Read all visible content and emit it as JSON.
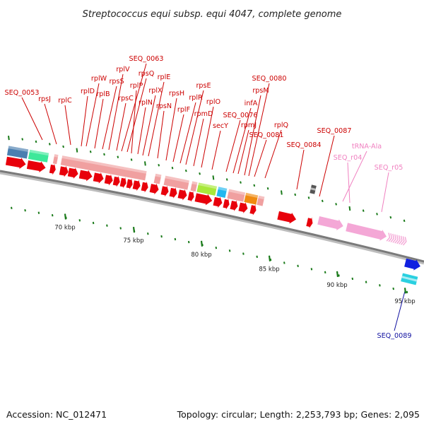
{
  "title": "Streptococcus equi subsp. equi 4047, complete genome",
  "footer": {
    "accession": "Accession: NC_012471",
    "topology": "Topology: circular; Length: 2,253,793 bp; Genes: 2,095"
  },
  "colors": {
    "cds_arrow": "#e8000b",
    "ribosomal_box": "#f0a0a0",
    "trna_pink": "#f4a7d6",
    "label_red": "#cc0000",
    "label_pink": "#f080c0",
    "label_blue": "#1010a0",
    "backbone": "#7a7a7a",
    "tick_green": "#1a7a1a"
  },
  "scale_ticks": [
    {
      "label": "70 kbp"
    },
    {
      "label": "75 kbp"
    },
    {
      "label": "80 kbp"
    },
    {
      "label": "85 kbp"
    },
    {
      "label": "90 kbp"
    },
    {
      "label": "95 kbp"
    }
  ],
  "gene_labels": [
    {
      "text": "SEQ_0053",
      "color": "red"
    },
    {
      "text": "rpsJ",
      "color": "red"
    },
    {
      "text": "rplC",
      "color": "red"
    },
    {
      "text": "rplD",
      "color": "red"
    },
    {
      "text": "rplW",
      "color": "red"
    },
    {
      "text": "rplB",
      "color": "red"
    },
    {
      "text": "rpsS",
      "color": "red"
    },
    {
      "text": "rplV",
      "color": "red"
    },
    {
      "text": "rpsC",
      "color": "red"
    },
    {
      "text": "SEQ_0063",
      "color": "red"
    },
    {
      "text": "rpsQ",
      "color": "red"
    },
    {
      "text": "rplP",
      "color": "red"
    },
    {
      "text": "rplN",
      "color": "red"
    },
    {
      "text": "rplX",
      "color": "red"
    },
    {
      "text": "rplE",
      "color": "red"
    },
    {
      "text": "rpsN",
      "color": "red"
    },
    {
      "text": "rpsH",
      "color": "red"
    },
    {
      "text": "rplF",
      "color": "red"
    },
    {
      "text": "rplR",
      "color": "red"
    },
    {
      "text": "rpsE",
      "color": "red"
    },
    {
      "text": "rpmD",
      "color": "red"
    },
    {
      "text": "rplO",
      "color": "red"
    },
    {
      "text": "secY",
      "color": "red"
    },
    {
      "text": "SEQ_0076",
      "color": "red"
    },
    {
      "text": "infA",
      "color": "red"
    },
    {
      "text": "rpmJ",
      "color": "red"
    },
    {
      "text": "rpsM",
      "color": "red"
    },
    {
      "text": "SEQ_0080",
      "color": "red"
    },
    {
      "text": "SEQ_0081",
      "color": "red"
    },
    {
      "text": "rplQ",
      "color": "red"
    },
    {
      "text": "SEQ_0084",
      "color": "red"
    },
    {
      "text": "SEQ_0087",
      "color": "red"
    },
    {
      "text": "tRNA-Ala",
      "color": "pink"
    },
    {
      "text": "SEQ_r04",
      "color": "pink"
    },
    {
      "text": "SEQ_r05",
      "color": "pink"
    },
    {
      "text": "SEQ_0089",
      "color": "blue"
    }
  ]
}
